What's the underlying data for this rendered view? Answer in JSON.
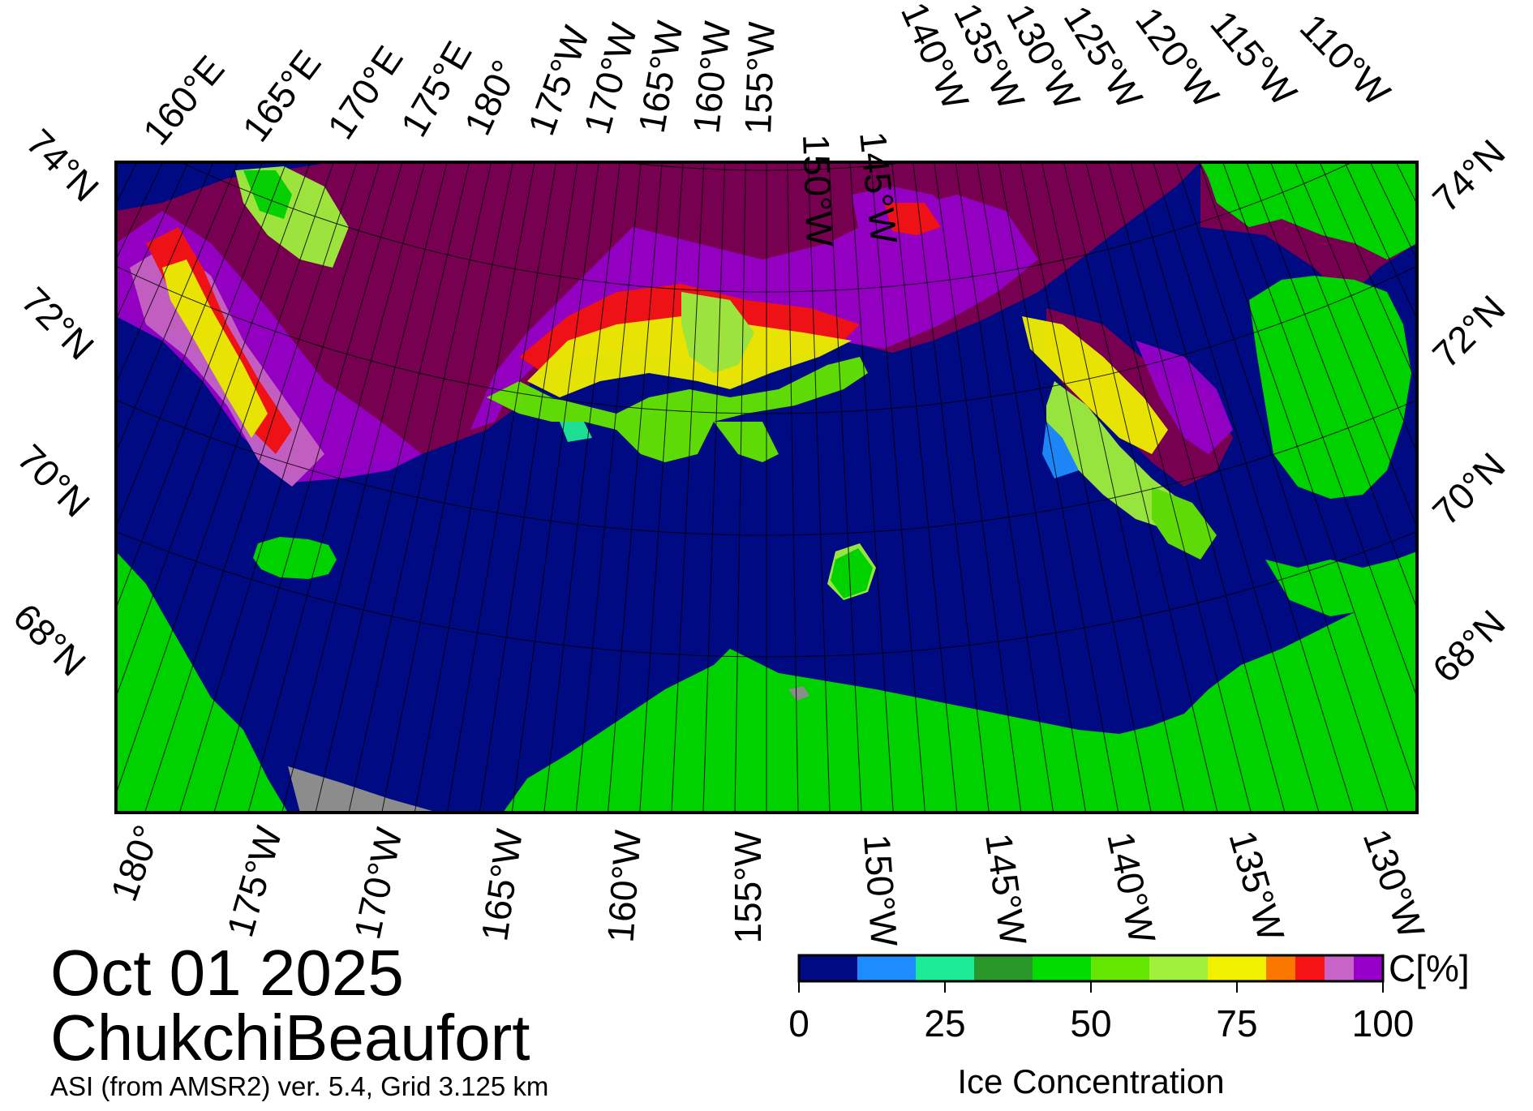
{
  "map": {
    "date": "Oct 01 2025",
    "region": "ChukchiBeaufort",
    "product": "ASI (from AMSR2) ver. 5.4,  Grid 3.125 km",
    "top_longitude_labels": [
      "160°E",
      "165°E",
      "170°E",
      "175°E",
      "180°",
      "175°W",
      "170°W",
      "165°W",
      "160°W",
      "155°W",
      "150°W",
      "145°W",
      "140°W",
      "135°W",
      "130°W",
      "125°W",
      "120°W",
      "115°W",
      "110°W"
    ],
    "bottom_longitude_labels": [
      "180°",
      "175°W",
      "170°W",
      "165°W",
      "160°W",
      "155°W",
      "150°W",
      "145°W",
      "140°W",
      "135°W",
      "130°W"
    ],
    "left_latitude_labels": [
      "74°N",
      "72°N",
      "70°N",
      "68°N"
    ],
    "right_latitude_labels": [
      "74°N",
      "72°N",
      "70°N",
      "68°N"
    ],
    "colors": {
      "open_water": "#000a82",
      "land": "#00d200",
      "ice_high": "#780050",
      "no_data": "#8c8c8c"
    }
  },
  "colorbar": {
    "title": "Ice Concentration",
    "unit": "C[%]",
    "ticks": [
      "0",
      "25",
      "50",
      "75",
      "100"
    ],
    "bins": [
      {
        "from": 0,
        "to": 10,
        "color": "#000a82"
      },
      {
        "from": 10,
        "to": 20,
        "color": "#1e8cff"
      },
      {
        "from": 20,
        "to": 30,
        "color": "#1eeb96"
      },
      {
        "from": 30,
        "to": 40,
        "color": "#289628"
      },
      {
        "from": 40,
        "to": 50,
        "color": "#00dc00"
      },
      {
        "from": 50,
        "to": 60,
        "color": "#64e600"
      },
      {
        "from": 60,
        "to": 70,
        "color": "#a0f03c"
      },
      {
        "from": 70,
        "to": 80,
        "color": "#f0f000"
      },
      {
        "from": 80,
        "to": 85,
        "color": "#fa7800"
      },
      {
        "from": 85,
        "to": 90,
        "color": "#f51414"
      },
      {
        "from": 90,
        "to": 95,
        "color": "#c864c8"
      },
      {
        "from": 95,
        "to": 100,
        "color": "#9600c8"
      }
    ]
  }
}
